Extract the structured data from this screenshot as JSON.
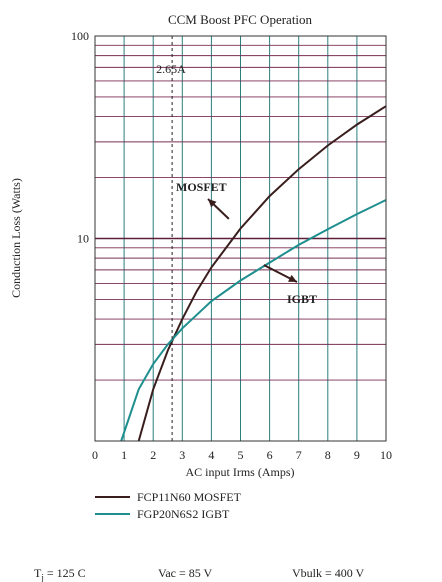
{
  "chart_data": {
    "type": "line",
    "title": "CCM Boost PFC Operation",
    "xlabel": "AC input Irms (Amps)",
    "ylabel": "Conduction Loss (Watts)",
    "xlim": [
      0,
      10
    ],
    "ylim": [
      1,
      100
    ],
    "yscale": "log",
    "grid": true,
    "x_ticks": [
      "0",
      "1",
      "2",
      "3",
      "4",
      "5",
      "6",
      "7",
      "8",
      "9",
      "10"
    ],
    "y_ticks": [
      {
        "value": 100,
        "label": "100"
      },
      {
        "value": 10,
        "label": "10"
      }
    ],
    "series": [
      {
        "name": "FCP11N60 MOSFET",
        "color": "#3a1e1e",
        "x": [
          1.5,
          2.0,
          2.5,
          3.0,
          3.5,
          4.0,
          5.0,
          6.0,
          7.0,
          8.0,
          9.0,
          10.0
        ],
        "y": [
          1.0,
          1.8,
          2.8,
          4.0,
          5.5,
          7.2,
          11.2,
          16.2,
          22,
          28.8,
          36.5,
          45
        ]
      },
      {
        "name": "FGP20N6S2 IGBT",
        "color": "#1f8e8e",
        "x": [
          0.9,
          1.5,
          2.0,
          2.5,
          3.0,
          3.5,
          4.0,
          5.0,
          6.0,
          7.0,
          8.0,
          9.0,
          10.0
        ],
        "y": [
          1.0,
          1.8,
          2.4,
          3.0,
          3.6,
          4.2,
          4.9,
          6.2,
          7.6,
          9.3,
          11.1,
          13.2,
          15.5
        ]
      }
    ],
    "annotations": [
      {
        "text": "2.65A",
        "x": 2.65,
        "style": "dashed vertical line"
      },
      {
        "text": "MOSFET",
        "series": "FCP11N60 MOSFET"
      },
      {
        "text": "IGBT",
        "series": "FGP20N6S2 IGBT"
      }
    ],
    "legend_position": "below"
  },
  "conditions": {
    "tj_prefix": "T",
    "tj_sub": "j",
    "tj_value": " = 125 C",
    "vac": "Vac = 85 V",
    "vbulk": "Vbulk = 400 V"
  }
}
